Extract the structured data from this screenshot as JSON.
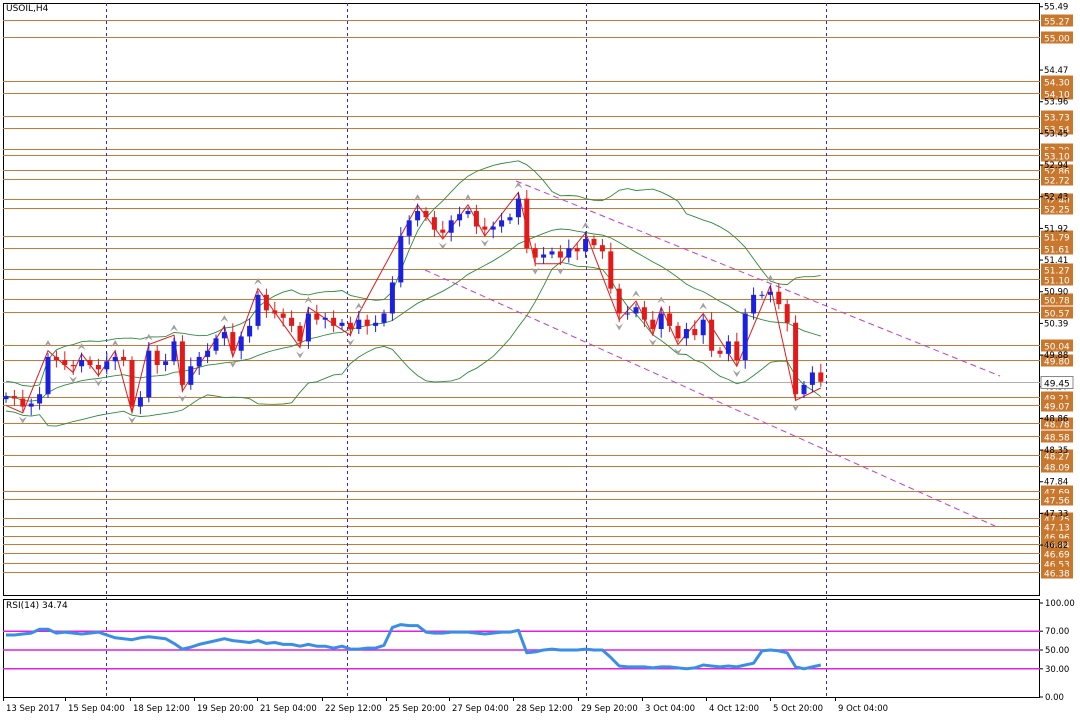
{
  "chart_data": {
    "type": "candlestick",
    "title": "USOIL,H4",
    "price_axis": {
      "range": [
        46.0,
        55.55
      ],
      "tick_labels": [
        "55.49",
        "54.47",
        "53.96",
        "53.45",
        "52.94",
        "52.43",
        "51.92",
        "51.41",
        "50.90",
        "50.39",
        "49.88",
        "49.37",
        "48.86",
        "48.35",
        "47.84",
        "47.33",
        "46.82"
      ]
    },
    "levels": [
      55.27,
      55.0,
      54.3,
      54.1,
      53.73,
      53.54,
      53.2,
      53.1,
      52.86,
      52.72,
      52.4,
      52.25,
      51.79,
      51.61,
      51.27,
      51.1,
      50.78,
      50.57,
      50.04,
      49.8,
      49.21,
      49.07,
      48.78,
      48.58,
      48.27,
      48.09,
      47.69,
      47.56,
      47.25,
      47.13,
      46.96,
      46.84,
      46.69,
      46.53,
      46.38
    ],
    "current_price": "49.45",
    "time_labels": [
      "13 Sep 2017",
      "15 Sep 04:00",
      "18 Sep 12:00",
      "19 Sep 20:00",
      "21 Sep 04:00",
      "22 Sep 12:00",
      "25 Sep 20:00",
      "27 Sep 04:00",
      "28 Sep 12:00",
      "29 Sep 20:00",
      "3 Oct 04:00",
      "4 Oct 12:00",
      "5 Oct 20:00",
      "9 Oct 04:00"
    ],
    "closes": [
      49.22,
      49.18,
      49.05,
      49.1,
      49.25,
      49.85,
      49.8,
      49.72,
      49.7,
      49.8,
      49.72,
      49.65,
      49.78,
      49.85,
      49.8,
      49.05,
      49.2,
      49.95,
      49.72,
      49.78,
      50.1,
      49.4,
      49.7,
      49.85,
      49.95,
      50.15,
      50.25,
      49.95,
      50.18,
      50.35,
      50.85,
      50.6,
      50.55,
      50.48,
      50.35,
      50.1,
      50.55,
      50.45,
      50.48,
      50.35,
      50.4,
      50.3,
      50.45,
      50.35,
      50.4,
      50.55,
      51.05,
      51.8,
      52.05,
      52.2,
      52.1,
      51.9,
      51.85,
      52.05,
      52.15,
      52.2,
      51.95,
      51.9,
      51.95,
      52.05,
      52.1,
      52.4,
      51.6,
      51.45,
      51.5,
      51.55,
      51.45,
      51.6,
      51.55,
      51.75,
      51.65,
      51.55,
      50.95,
      50.55,
      50.55,
      50.65,
      50.45,
      50.3,
      50.55,
      50.35,
      50.15,
      50.3,
      50.2,
      50.45,
      49.95,
      49.9,
      50.1,
      49.8,
      50.55,
      50.85,
      50.85,
      50.9,
      50.7,
      50.4,
      49.25,
      49.4,
      49.6,
      49.45
    ],
    "upper_channel": [
      [
        516,
        181
      ],
      [
        1000,
        376
      ]
    ],
    "lower_channel": [
      [
        425,
        270
      ],
      [
        995,
        526
      ]
    ],
    "rsi": {
      "label": "RSI(14)",
      "value": "34.74",
      "range": [
        0,
        100
      ],
      "tick_labels": [
        "100.00",
        "70.00",
        "50.00",
        "30.00",
        "0.00"
      ],
      "levels": [
        70,
        50,
        30
      ],
      "values": [
        66,
        66,
        67,
        68,
        72,
        72,
        68,
        69,
        68,
        67,
        68,
        69,
        66,
        63,
        62,
        61,
        63,
        64,
        63,
        62,
        57,
        51,
        53,
        56,
        58,
        60,
        62,
        60,
        59,
        58,
        60,
        57,
        58,
        56,
        56,
        54,
        56,
        54,
        54,
        52,
        54,
        51,
        51,
        52,
        52,
        55,
        74,
        77,
        76,
        76,
        69,
        68,
        68,
        69,
        69,
        69,
        68,
        67,
        68,
        69,
        69,
        71,
        47,
        48,
        50,
        51,
        50,
        50,
        50,
        51,
        50,
        50,
        42,
        33,
        32,
        32,
        32,
        31,
        32,
        32,
        31,
        30,
        31,
        34,
        33,
        32,
        33,
        32,
        34,
        36,
        49,
        50,
        49,
        47,
        32,
        30,
        32,
        34
      ]
    }
  }
}
